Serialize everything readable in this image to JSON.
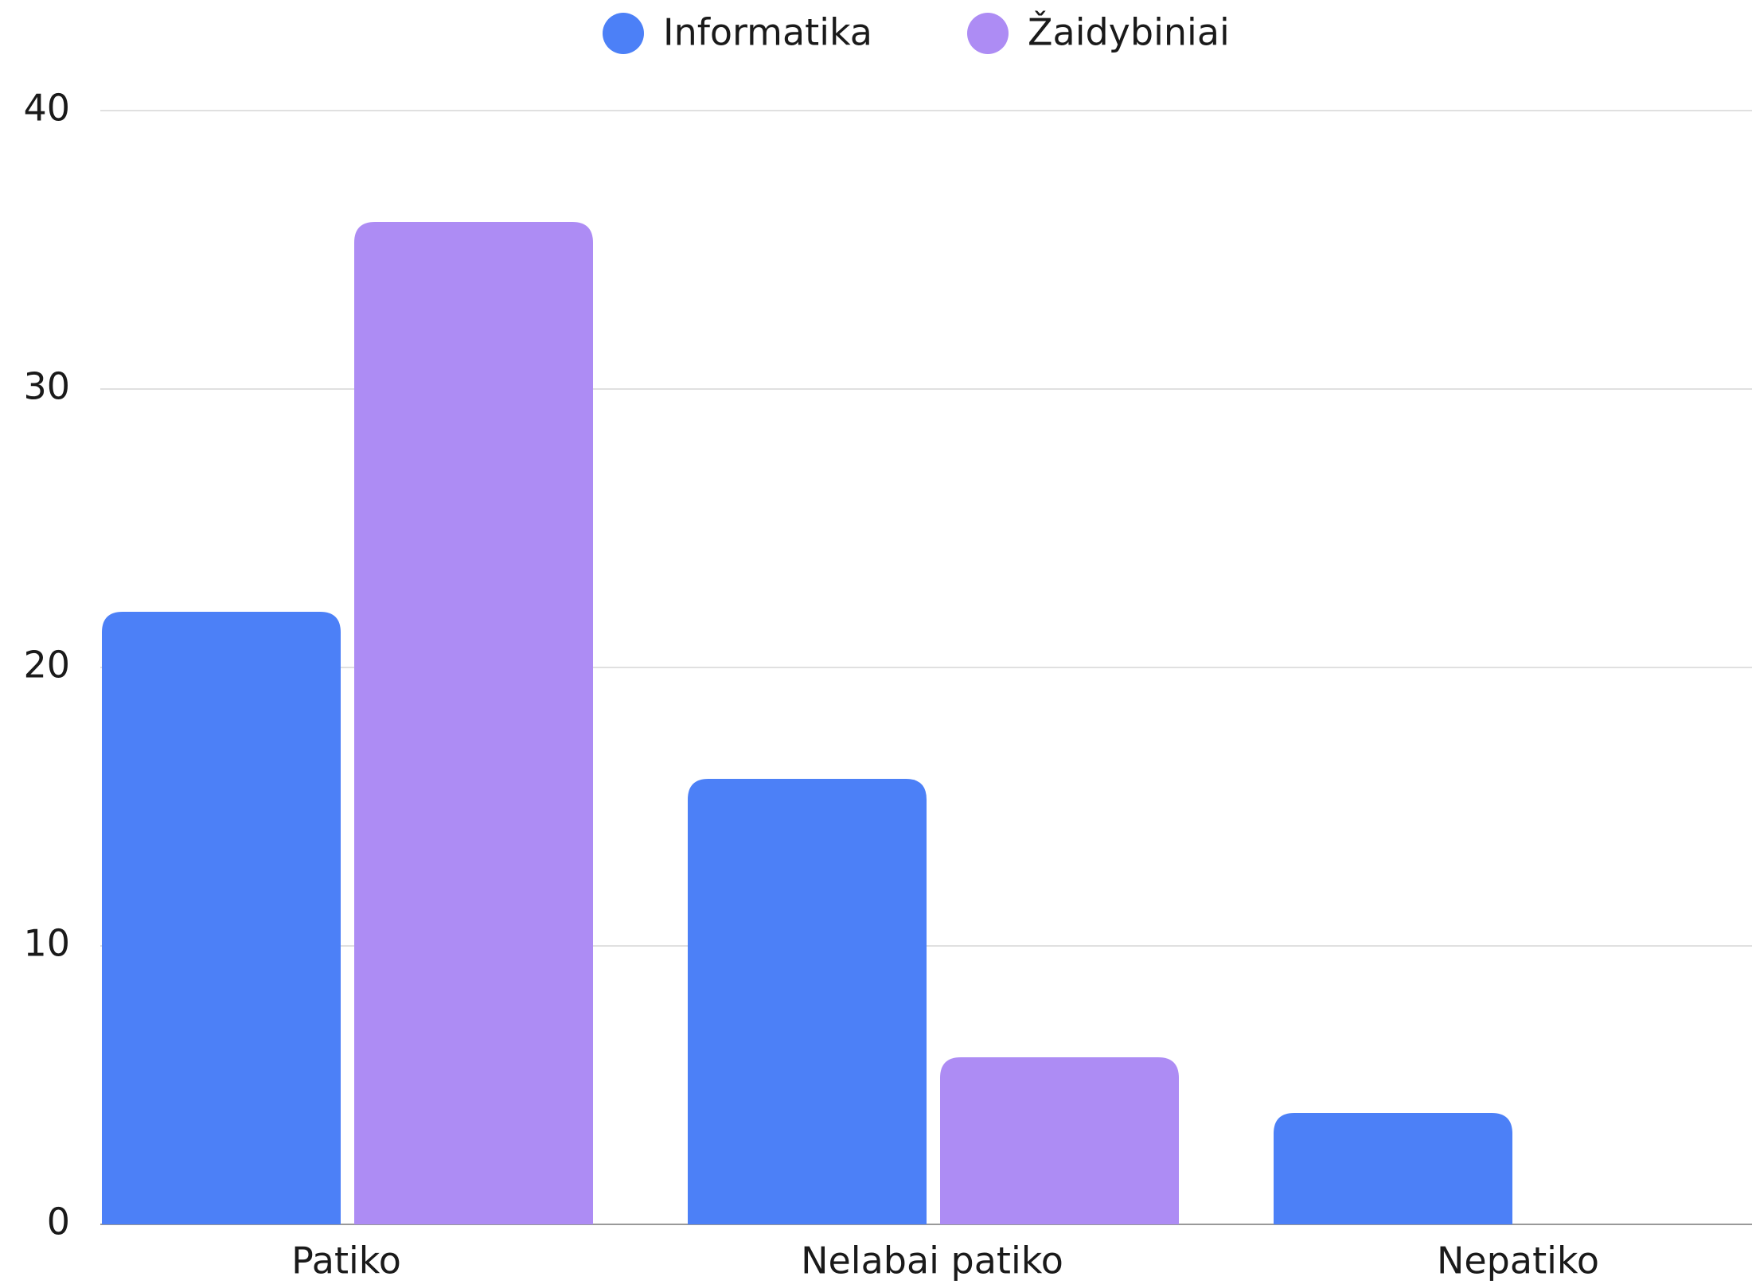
{
  "chart_data": {
    "type": "bar",
    "categories": [
      "Patiko",
      "Nelabai patiko",
      "Nepatiko"
    ],
    "series": [
      {
        "name": "Informatika",
        "color": "#4c80f7",
        "values": [
          22,
          16,
          4
        ]
      },
      {
        "name": "Žaidybiniai",
        "color": "#ad8cf4",
        "values": [
          36,
          6,
          0
        ]
      }
    ],
    "ylim": [
      0,
      40
    ],
    "yticks": [
      0,
      10,
      20,
      30,
      40
    ],
    "grid": true,
    "legend": "top"
  }
}
